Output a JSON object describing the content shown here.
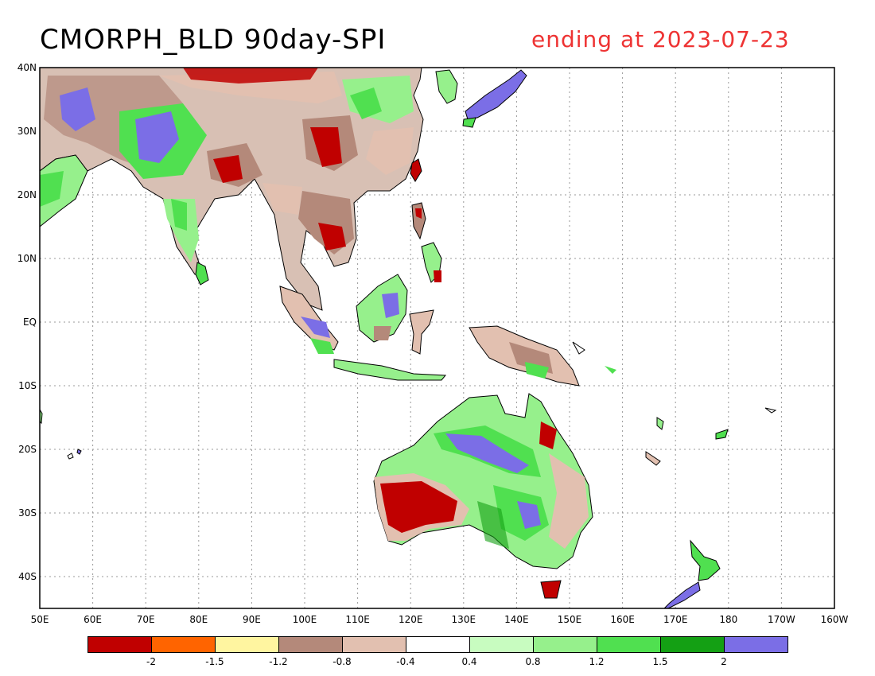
{
  "title": "CMORPH_BLD 90day-SPI",
  "subtitle": "ending at 2023-07-23",
  "subtitle_color": "#ee3333",
  "lat_labels": [
    "40N",
    "30N",
    "20N",
    "10N",
    "EQ",
    "10S",
    "20S",
    "30S",
    "40S"
  ],
  "lon_labels": [
    "50E",
    "60E",
    "70E",
    "80E",
    "90E",
    "100E",
    "110E",
    "120E",
    "130E",
    "140E",
    "150E",
    "160E",
    "170E",
    "180",
    "170W",
    "160W"
  ],
  "colorbar": {
    "colors": [
      "#c00000",
      "#ff6400",
      "#fff5a0",
      "#b4897a",
      "#e2c0b0",
      "#ffffff",
      "#c8fcc0",
      "#96f08c",
      "#50e050",
      "#14a014",
      "#7b6ee6"
    ],
    "labels": [
      "-2",
      "-1.5",
      "-1.2",
      "-0.8",
      "-0.4",
      "0.4",
      "0.8",
      "1.2",
      "1.5",
      "2"
    ]
  }
}
